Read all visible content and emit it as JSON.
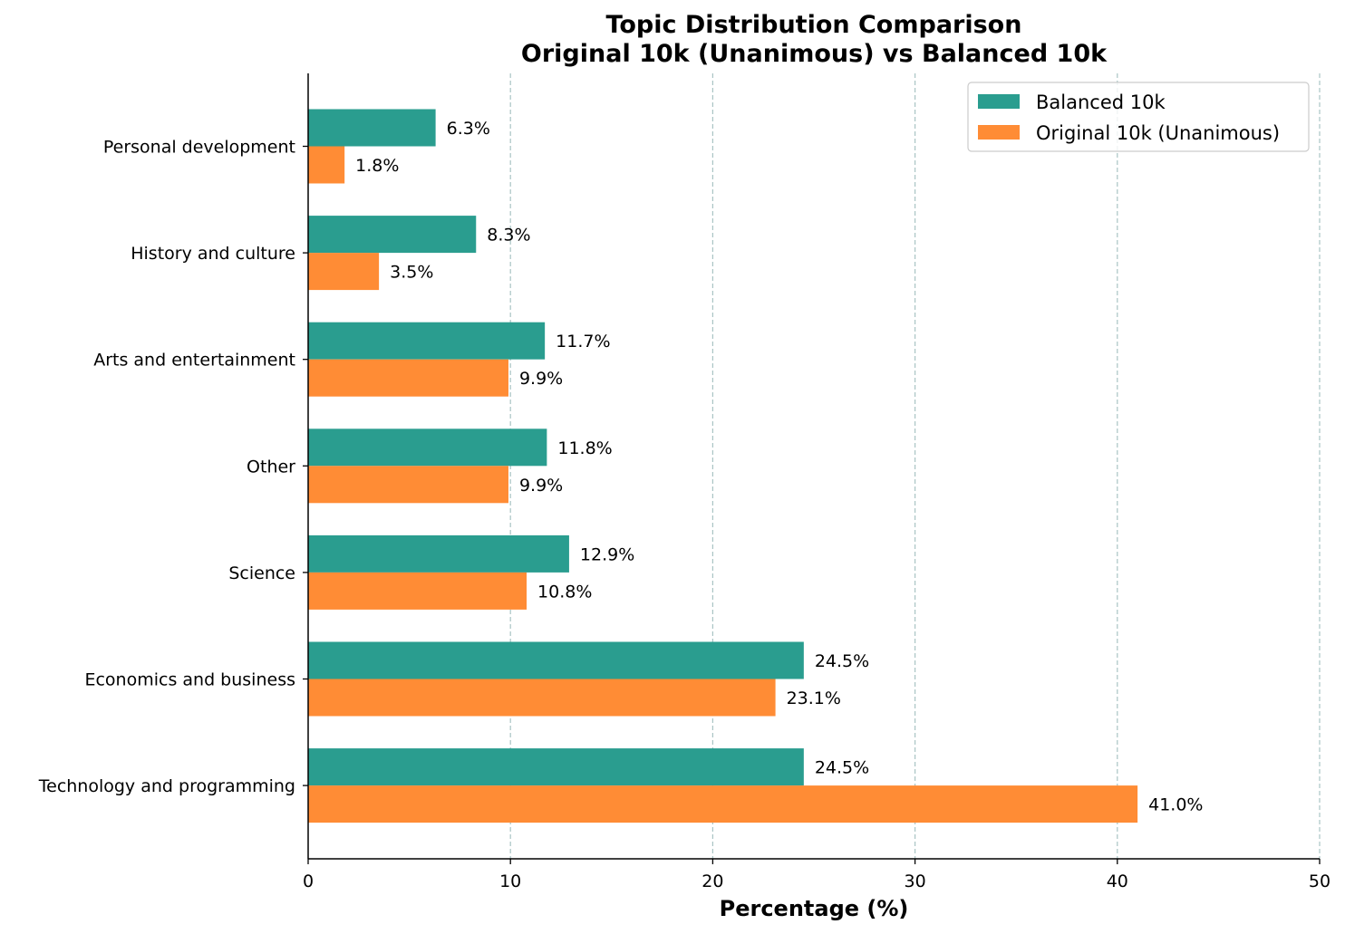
{
  "chart_data": {
    "type": "bar",
    "orientation": "horizontal",
    "title": "Topic Distribution Comparison",
    "subtitle": "Original 10k (Unanimous) vs Balanced 10k",
    "xlabel": "Percentage (%)",
    "ylabel": "",
    "xlim": [
      0,
      50
    ],
    "xticks": [
      "0",
      "10",
      "20",
      "30",
      "40",
      "50"
    ],
    "grid": "x-axis dashed",
    "legend_position": "top-right",
    "categories": [
      "Personal development",
      "History and culture",
      "Arts and entertainment",
      "Other",
      "Science",
      "Economics and business",
      "Technology and programming"
    ],
    "series": [
      {
        "name": "Balanced 10k",
        "color": "#2a9d8f",
        "values": [
          6.3,
          8.3,
          11.7,
          11.8,
          12.9,
          24.5,
          24.5
        ],
        "labels": [
          "6.3%",
          "8.3%",
          "11.7%",
          "11.8%",
          "12.9%",
          "24.5%",
          "24.5%"
        ]
      },
      {
        "name": "Original 10k (Unanimous)",
        "color": "#ff8c35",
        "values": [
          1.8,
          3.5,
          9.9,
          9.9,
          10.8,
          23.1,
          41.0
        ],
        "labels": [
          "1.8%",
          "3.5%",
          "9.9%",
          "9.9%",
          "10.8%",
          "23.1%",
          "41.0%"
        ]
      }
    ]
  }
}
